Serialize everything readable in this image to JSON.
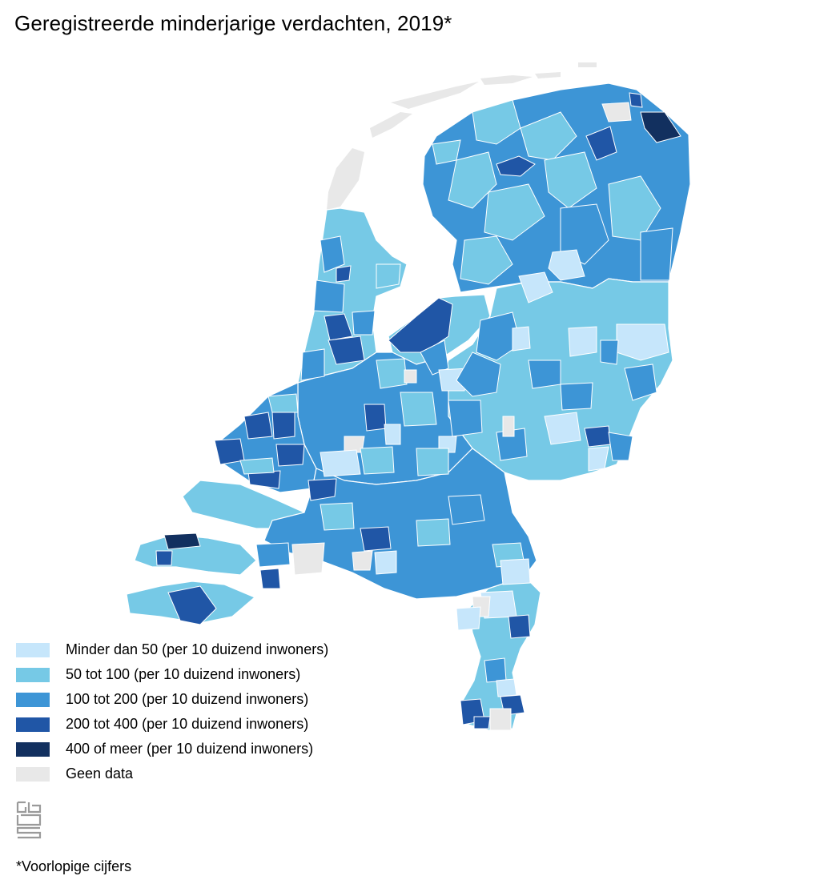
{
  "title": "Geregistreerde minderjarige verdachten, 2019*",
  "legend": [
    {
      "label": "Minder dan 50 (per 10 duizend inwoners)",
      "color": "#c6e6fb"
    },
    {
      "label": "50 tot 100 (per 10 duizend inwoners)",
      "color": "#76c9e6"
    },
    {
      "label": "100 tot 200 (per 10 duizend inwoners)",
      "color": "#3d95d6"
    },
    {
      "label": "200 tot 400 (per 10 duizend inwoners)",
      "color": "#2056a6"
    },
    {
      "label": "400 of meer (per 10 duizend inwoners)",
      "color": "#12305f"
    },
    {
      "label": "Geen data",
      "color": "#e8e8e8"
    }
  ],
  "footnote": "*Voorlopige cijfers",
  "logo": {
    "icon": "cbs-logo-icon",
    "color": "#9a9a9a"
  },
  "water_color": "#ffffff"
}
